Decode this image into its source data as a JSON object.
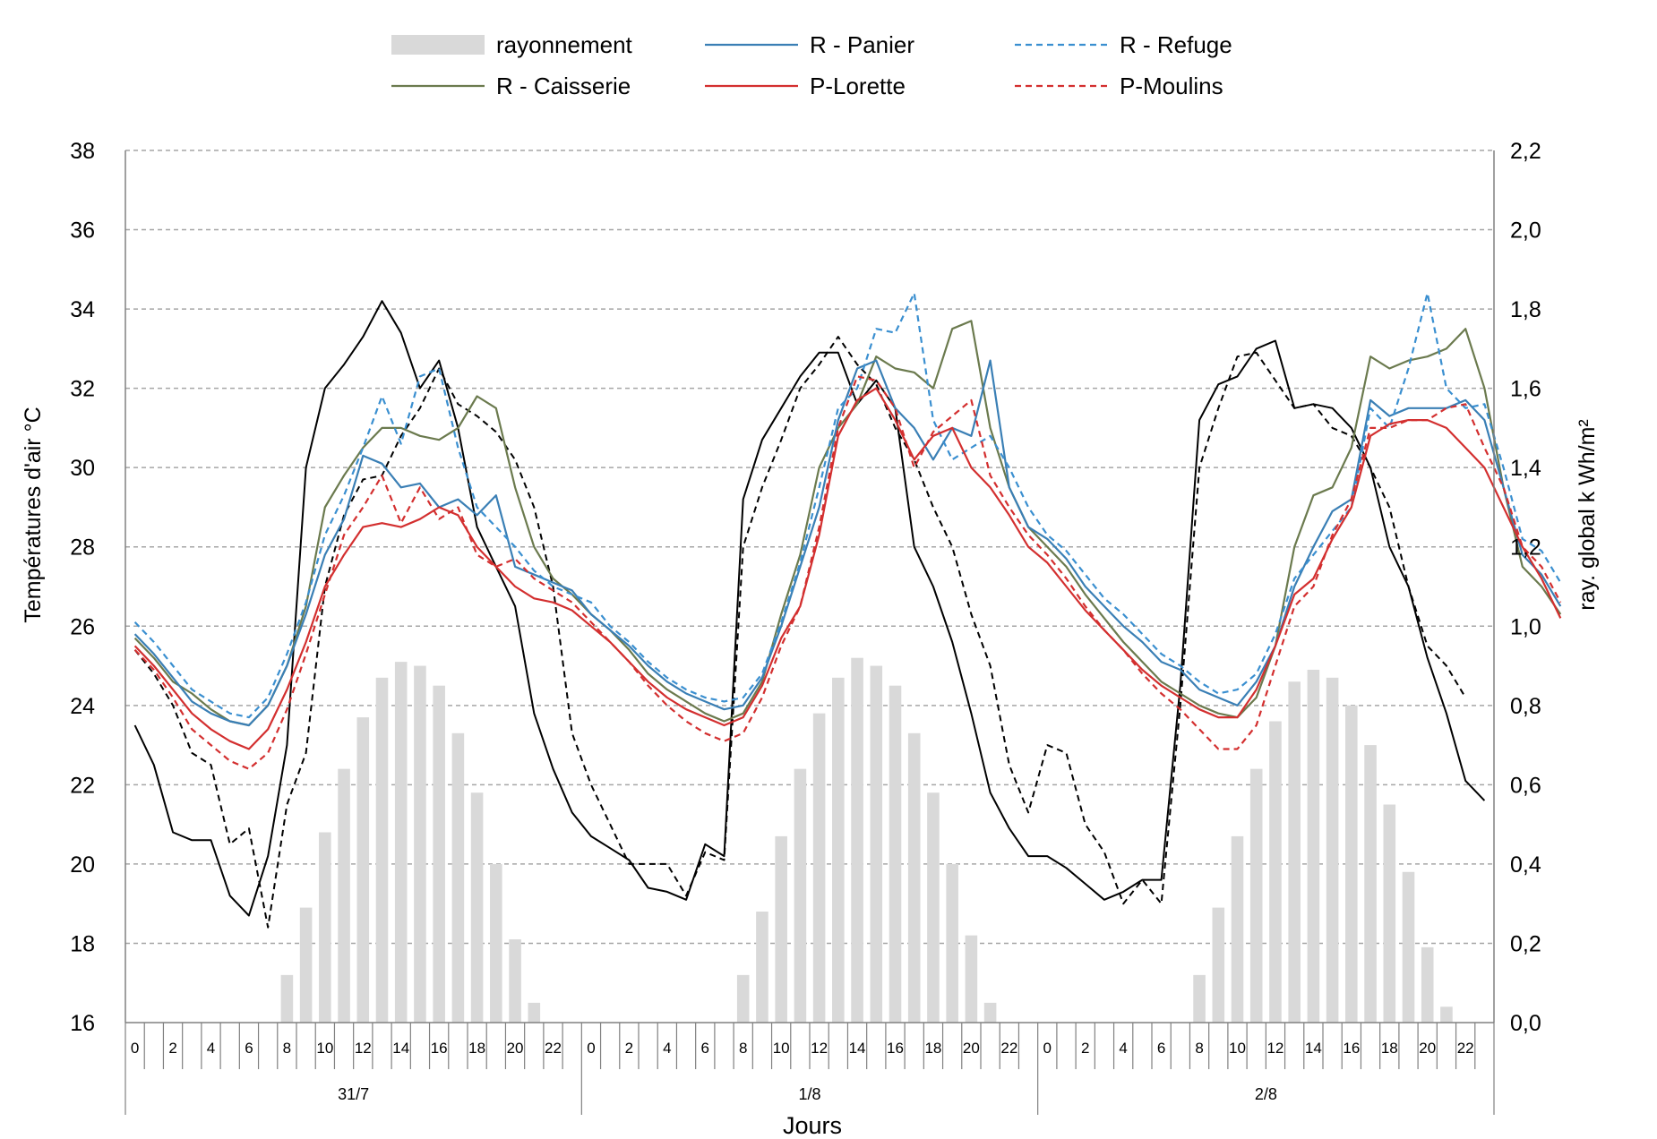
{
  "chart_data": {
    "type": "line",
    "xlabel": "Jours",
    "ylabel_left": "Températures d'air °C",
    "ylabel_right": "ray. global k Wh/m²",
    "ylim_left": [
      16,
      38
    ],
    "yticks_left": [
      "16",
      "18",
      "20",
      "22",
      "24",
      "26",
      "28",
      "30",
      "32",
      "34",
      "36",
      "38"
    ],
    "ylim_right": [
      0,
      2.2
    ],
    "yticks_right": [
      "0,0",
      "0,2",
      "0,4",
      "0,6",
      "0,8",
      "1,0",
      "1,2",
      "1,4",
      "1,6",
      "1,8",
      "2,0",
      "2,2"
    ],
    "days": [
      "31/7",
      "1/8",
      "2/8"
    ],
    "hour_labels": [
      "0",
      "2",
      "4",
      "6",
      "8",
      "10",
      "12",
      "14",
      "16",
      "18",
      "20",
      "22"
    ],
    "grid": "horizontal dashed",
    "legend_position": "top",
    "legend": [
      {
        "key": "ray",
        "name": "rayonnement",
        "color": "#d9d9d9",
        "style": "bar"
      },
      {
        "key": "panier",
        "name": "R - Panier",
        "color": "#3a7fb5",
        "style": "solid"
      },
      {
        "key": "refuge",
        "name": "R - Refuge",
        "color": "#3a8fd0",
        "style": "dashed"
      },
      {
        "key": "caisserie",
        "name": "R - Caisserie",
        "color": "#6b7a4e",
        "style": "solid"
      },
      {
        "key": "lorette",
        "name": "P-Lorette",
        "color": "#d32f2f",
        "style": "solid"
      },
      {
        "key": "moulins",
        "name": "P-Moulins",
        "color": "#d32f2f",
        "style": "dashed"
      }
    ],
    "unlabeled_series": [
      {
        "key": "black_solid",
        "color": "#000000",
        "style": "solid"
      },
      {
        "key": "black_dashed",
        "color": "#000000",
        "style": "dashed"
      }
    ],
    "radiation_kwh_m2": {
      "day1": [
        0,
        0,
        0,
        0,
        0,
        0,
        0,
        0,
        0.12,
        0.29,
        0.48,
        0.64,
        0.77,
        0.87,
        0.91,
        0.9,
        0.85,
        0.73,
        0.58,
        0.4,
        0.21,
        0.05,
        0,
        0
      ],
      "day2": [
        0,
        0,
        0,
        0,
        0,
        0,
        0,
        0,
        0.12,
        0.28,
        0.47,
        0.64,
        0.78,
        0.87,
        0.92,
        0.9,
        0.85,
        0.73,
        0.58,
        0.4,
        0.22,
        0.05,
        0,
        0
      ],
      "day3": [
        0,
        0,
        0,
        0,
        0,
        0,
        0,
        0,
        0.12,
        0.29,
        0.47,
        0.64,
        0.76,
        0.86,
        0.89,
        0.87,
        0.8,
        0.7,
        0.55,
        0.38,
        0.19,
        0.04,
        0,
        0
      ]
    },
    "temperatures_c": {
      "panier": [
        25.8,
        25.3,
        24.7,
        24.1,
        23.8,
        23.6,
        23.5,
        24.0,
        25.0,
        26.3,
        27.8,
        28.7,
        30.3,
        30.1,
        29.5,
        29.6,
        29.0,
        29.2,
        28.8,
        29.3,
        27.5,
        27.3,
        27.1,
        26.9,
        26.3,
        25.9,
        25.5,
        25.0,
        24.6,
        24.3,
        24.1,
        23.9,
        24.0,
        24.7,
        26.0,
        27.5,
        29.0,
        31.2,
        32.5,
        32.7,
        31.5,
        31.0,
        30.2,
        31.0,
        30.8,
        32.7,
        29.5,
        28.5,
        28.2,
        27.7,
        27.0,
        26.5,
        26.0,
        25.6,
        25.1,
        24.9,
        24.4,
        24.2,
        24.0,
        24.6,
        25.5,
        27.0,
        28.0,
        28.9,
        29.2,
        31.7,
        31.3,
        31.5,
        31.5,
        31.5,
        31.7,
        31.2,
        29.5,
        27.8,
        27.3,
        26.5
      ],
      "refuge": [
        26.1,
        25.6,
        25.0,
        24.4,
        24.1,
        23.8,
        23.7,
        24.2,
        25.3,
        26.6,
        28.3,
        29.3,
        30.5,
        31.8,
        30.6,
        32.3,
        32.5,
        30.5,
        29.0,
        28.5,
        28.0,
        27.4,
        27.0,
        26.8,
        26.6,
        26.0,
        25.6,
        25.1,
        24.7,
        24.4,
        24.2,
        24.1,
        24.2,
        24.8,
        26.1,
        27.6,
        29.5,
        31.5,
        32.0,
        33.5,
        33.4,
        34.4,
        31.2,
        30.2,
        30.5,
        30.8,
        30.0,
        29.0,
        28.3,
        27.9,
        27.3,
        26.7,
        26.3,
        25.8,
        25.3,
        25.0,
        24.6,
        24.3,
        24.4,
        24.8,
        25.8,
        27.2,
        27.8,
        28.4,
        29.0,
        31.5,
        31.0,
        32.5,
        34.4,
        32.0,
        31.5,
        31.6,
        30.0,
        28.2,
        27.9,
        27.1
      ],
      "caisserie": [
        25.7,
        25.2,
        24.6,
        24.3,
        23.9,
        23.6,
        23.5,
        24.0,
        25.0,
        26.5,
        29.0,
        29.8,
        30.5,
        31.0,
        31.0,
        30.8,
        30.7,
        31.0,
        31.8,
        31.5,
        29.5,
        28.0,
        27.2,
        26.8,
        26.3,
        25.9,
        25.4,
        24.8,
        24.4,
        24.1,
        23.8,
        23.6,
        23.8,
        24.6,
        26.3,
        27.8,
        30.0,
        31.0,
        31.6,
        32.8,
        32.5,
        32.4,
        32.0,
        33.5,
        33.7,
        31.0,
        29.5,
        28.5,
        28.0,
        27.5,
        26.8,
        26.2,
        25.6,
        25.1,
        24.6,
        24.3,
        24.0,
        23.8,
        23.7,
        24.2,
        25.5,
        28.0,
        29.3,
        29.5,
        30.5,
        32.8,
        32.5,
        32.7,
        32.8,
        33.0,
        33.5,
        32.0,
        29.5,
        27.5,
        27.0,
        26.3
      ],
      "lorette": [
        25.5,
        25.0,
        24.4,
        23.8,
        23.4,
        23.1,
        22.9,
        23.4,
        24.4,
        25.6,
        27.0,
        27.8,
        28.5,
        28.6,
        28.5,
        28.7,
        29.0,
        28.8,
        28.0,
        27.5,
        27.0,
        26.7,
        26.6,
        26.4,
        26.0,
        25.6,
        25.1,
        24.6,
        24.2,
        23.9,
        23.7,
        23.5,
        23.7,
        24.5,
        25.7,
        26.5,
        28.3,
        30.8,
        31.7,
        32.0,
        31.2,
        30.2,
        30.8,
        31.0,
        30.0,
        29.5,
        28.8,
        28.0,
        27.6,
        27.0,
        26.4,
        25.9,
        25.4,
        24.9,
        24.5,
        24.2,
        23.9,
        23.7,
        23.7,
        24.4,
        25.5,
        26.8,
        27.2,
        28.2,
        29.0,
        30.8,
        31.1,
        31.2,
        31.2,
        31.0,
        30.5,
        30.0,
        29.0,
        28.0,
        27.2,
        26.2
      ],
      "moulins": [
        25.4,
        24.9,
        24.2,
        23.4,
        23.0,
        22.6,
        22.4,
        22.8,
        23.9,
        25.3,
        26.8,
        28.3,
        29.0,
        29.8,
        28.6,
        29.5,
        28.7,
        29.0,
        27.8,
        27.5,
        27.7,
        27.2,
        26.9,
        26.6,
        26.1,
        25.6,
        25.1,
        24.5,
        24.0,
        23.6,
        23.3,
        23.1,
        23.3,
        24.2,
        25.5,
        26.5,
        28.5,
        31.0,
        32.3,
        32.2,
        31.5,
        30.0,
        30.9,
        31.3,
        31.7,
        29.8,
        29.0,
        28.3,
        27.8,
        27.2,
        26.5,
        25.9,
        25.4,
        24.8,
        24.3,
        23.9,
        23.4,
        22.9,
        22.9,
        23.5,
        25.0,
        26.5,
        27.0,
        28.3,
        29.2,
        31.0,
        31.0,
        31.2,
        31.2,
        31.5,
        31.6,
        30.5,
        29.5,
        28.0,
        27.5,
        26.6
      ],
      "black_solid": [
        23.5,
        22.5,
        20.8,
        20.6,
        20.6,
        19.2,
        18.7,
        20.2,
        23.0,
        30.0,
        32.0,
        32.6,
        33.3,
        34.2,
        33.4,
        32.0,
        32.7,
        31.0,
        28.5,
        27.5,
        26.5,
        23.8,
        22.4,
        21.3,
        20.7,
        20.4,
        20.1,
        19.4,
        19.3,
        19.1,
        20.5,
        20.2,
        29.2,
        30.7,
        31.5,
        32.3,
        32.9,
        32.9,
        31.6,
        32.2,
        31.5,
        28.0,
        27.0,
        25.6,
        23.8,
        21.8,
        20.9,
        20.2,
        20.2,
        19.9,
        19.5,
        19.1,
        19.3,
        19.6,
        19.6,
        24.5,
        31.2,
        32.1,
        32.3,
        33.0,
        33.2,
        31.5,
        31.6,
        31.5,
        31.0,
        30.0,
        28.0,
        27.0,
        25.2,
        23.8,
        22.1,
        21.6
      ],
      "black_dashed": [
        25.4,
        24.8,
        24.0,
        22.8,
        22.5,
        20.5,
        20.9,
        18.4,
        21.5,
        22.8,
        27.0,
        28.8,
        29.7,
        29.8,
        30.8,
        31.5,
        32.5,
        31.6,
        31.3,
        30.9,
        30.2,
        29.0,
        27.0,
        23.3,
        22.0,
        21.0,
        20.0,
        20.0,
        20.0,
        19.2,
        20.3,
        20.1,
        28.0,
        29.5,
        30.7,
        32.0,
        32.6,
        33.3,
        32.6,
        32.1,
        31.0,
        30.2,
        29.0,
        28.0,
        26.3,
        25.0,
        22.5,
        21.3,
        23.0,
        22.8,
        21.0,
        20.3,
        19.0,
        19.6,
        19.0,
        24.0,
        30.0,
        31.5,
        32.8,
        32.9,
        32.2,
        31.5,
        31.6,
        31.0,
        30.8,
        30.0,
        29.0,
        27.0,
        25.5,
        25.0,
        24.2
      ]
    }
  }
}
